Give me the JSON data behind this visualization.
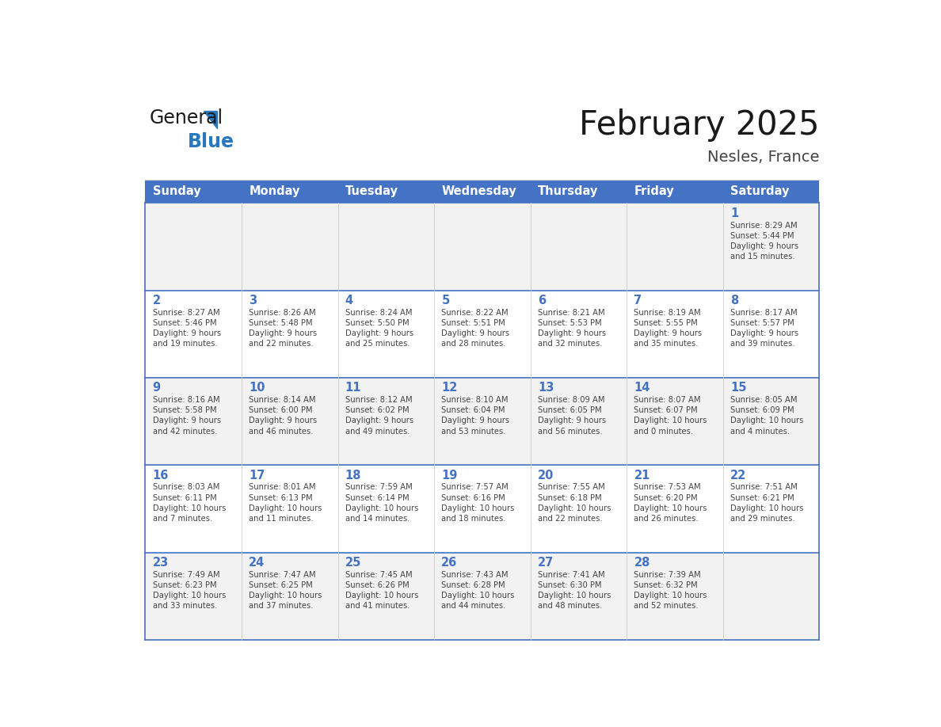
{
  "title": "February 2025",
  "subtitle": "Nesles, France",
  "days_of_week": [
    "Sunday",
    "Monday",
    "Tuesday",
    "Wednesday",
    "Thursday",
    "Friday",
    "Saturday"
  ],
  "header_bg_color": "#4472C4",
  "header_text_color": "#FFFFFF",
  "row_bg_color_even": "#F2F2F2",
  "row_bg_color_odd": "#FFFFFF",
  "cell_border_color": "#4472C4",
  "day_number_color": "#4472C4",
  "info_text_color": "#444444",
  "title_color": "#1a1a1a",
  "subtitle_color": "#444444",
  "logo_general_color": "#1a1a1a",
  "logo_blue_color": "#2878C0",
  "weeks": [
    {
      "days": [
        {
          "day": null,
          "info": null
        },
        {
          "day": null,
          "info": null
        },
        {
          "day": null,
          "info": null
        },
        {
          "day": null,
          "info": null
        },
        {
          "day": null,
          "info": null
        },
        {
          "day": null,
          "info": null
        },
        {
          "day": 1,
          "info": "Sunrise: 8:29 AM\nSunset: 5:44 PM\nDaylight: 9 hours\nand 15 minutes."
        }
      ]
    },
    {
      "days": [
        {
          "day": 2,
          "info": "Sunrise: 8:27 AM\nSunset: 5:46 PM\nDaylight: 9 hours\nand 19 minutes."
        },
        {
          "day": 3,
          "info": "Sunrise: 8:26 AM\nSunset: 5:48 PM\nDaylight: 9 hours\nand 22 minutes."
        },
        {
          "day": 4,
          "info": "Sunrise: 8:24 AM\nSunset: 5:50 PM\nDaylight: 9 hours\nand 25 minutes."
        },
        {
          "day": 5,
          "info": "Sunrise: 8:22 AM\nSunset: 5:51 PM\nDaylight: 9 hours\nand 28 minutes."
        },
        {
          "day": 6,
          "info": "Sunrise: 8:21 AM\nSunset: 5:53 PM\nDaylight: 9 hours\nand 32 minutes."
        },
        {
          "day": 7,
          "info": "Sunrise: 8:19 AM\nSunset: 5:55 PM\nDaylight: 9 hours\nand 35 minutes."
        },
        {
          "day": 8,
          "info": "Sunrise: 8:17 AM\nSunset: 5:57 PM\nDaylight: 9 hours\nand 39 minutes."
        }
      ]
    },
    {
      "days": [
        {
          "day": 9,
          "info": "Sunrise: 8:16 AM\nSunset: 5:58 PM\nDaylight: 9 hours\nand 42 minutes."
        },
        {
          "day": 10,
          "info": "Sunrise: 8:14 AM\nSunset: 6:00 PM\nDaylight: 9 hours\nand 46 minutes."
        },
        {
          "day": 11,
          "info": "Sunrise: 8:12 AM\nSunset: 6:02 PM\nDaylight: 9 hours\nand 49 minutes."
        },
        {
          "day": 12,
          "info": "Sunrise: 8:10 AM\nSunset: 6:04 PM\nDaylight: 9 hours\nand 53 minutes."
        },
        {
          "day": 13,
          "info": "Sunrise: 8:09 AM\nSunset: 6:05 PM\nDaylight: 9 hours\nand 56 minutes."
        },
        {
          "day": 14,
          "info": "Sunrise: 8:07 AM\nSunset: 6:07 PM\nDaylight: 10 hours\nand 0 minutes."
        },
        {
          "day": 15,
          "info": "Sunrise: 8:05 AM\nSunset: 6:09 PM\nDaylight: 10 hours\nand 4 minutes."
        }
      ]
    },
    {
      "days": [
        {
          "day": 16,
          "info": "Sunrise: 8:03 AM\nSunset: 6:11 PM\nDaylight: 10 hours\nand 7 minutes."
        },
        {
          "day": 17,
          "info": "Sunrise: 8:01 AM\nSunset: 6:13 PM\nDaylight: 10 hours\nand 11 minutes."
        },
        {
          "day": 18,
          "info": "Sunrise: 7:59 AM\nSunset: 6:14 PM\nDaylight: 10 hours\nand 14 minutes."
        },
        {
          "day": 19,
          "info": "Sunrise: 7:57 AM\nSunset: 6:16 PM\nDaylight: 10 hours\nand 18 minutes."
        },
        {
          "day": 20,
          "info": "Sunrise: 7:55 AM\nSunset: 6:18 PM\nDaylight: 10 hours\nand 22 minutes."
        },
        {
          "day": 21,
          "info": "Sunrise: 7:53 AM\nSunset: 6:20 PM\nDaylight: 10 hours\nand 26 minutes."
        },
        {
          "day": 22,
          "info": "Sunrise: 7:51 AM\nSunset: 6:21 PM\nDaylight: 10 hours\nand 29 minutes."
        }
      ]
    },
    {
      "days": [
        {
          "day": 23,
          "info": "Sunrise: 7:49 AM\nSunset: 6:23 PM\nDaylight: 10 hours\nand 33 minutes."
        },
        {
          "day": 24,
          "info": "Sunrise: 7:47 AM\nSunset: 6:25 PM\nDaylight: 10 hours\nand 37 minutes."
        },
        {
          "day": 25,
          "info": "Sunrise: 7:45 AM\nSunset: 6:26 PM\nDaylight: 10 hours\nand 41 minutes."
        },
        {
          "day": 26,
          "info": "Sunrise: 7:43 AM\nSunset: 6:28 PM\nDaylight: 10 hours\nand 44 minutes."
        },
        {
          "day": 27,
          "info": "Sunrise: 7:41 AM\nSunset: 6:30 PM\nDaylight: 10 hours\nand 48 minutes."
        },
        {
          "day": 28,
          "info": "Sunrise: 7:39 AM\nSunset: 6:32 PM\nDaylight: 10 hours\nand 52 minutes."
        },
        {
          "day": null,
          "info": null
        }
      ]
    }
  ]
}
